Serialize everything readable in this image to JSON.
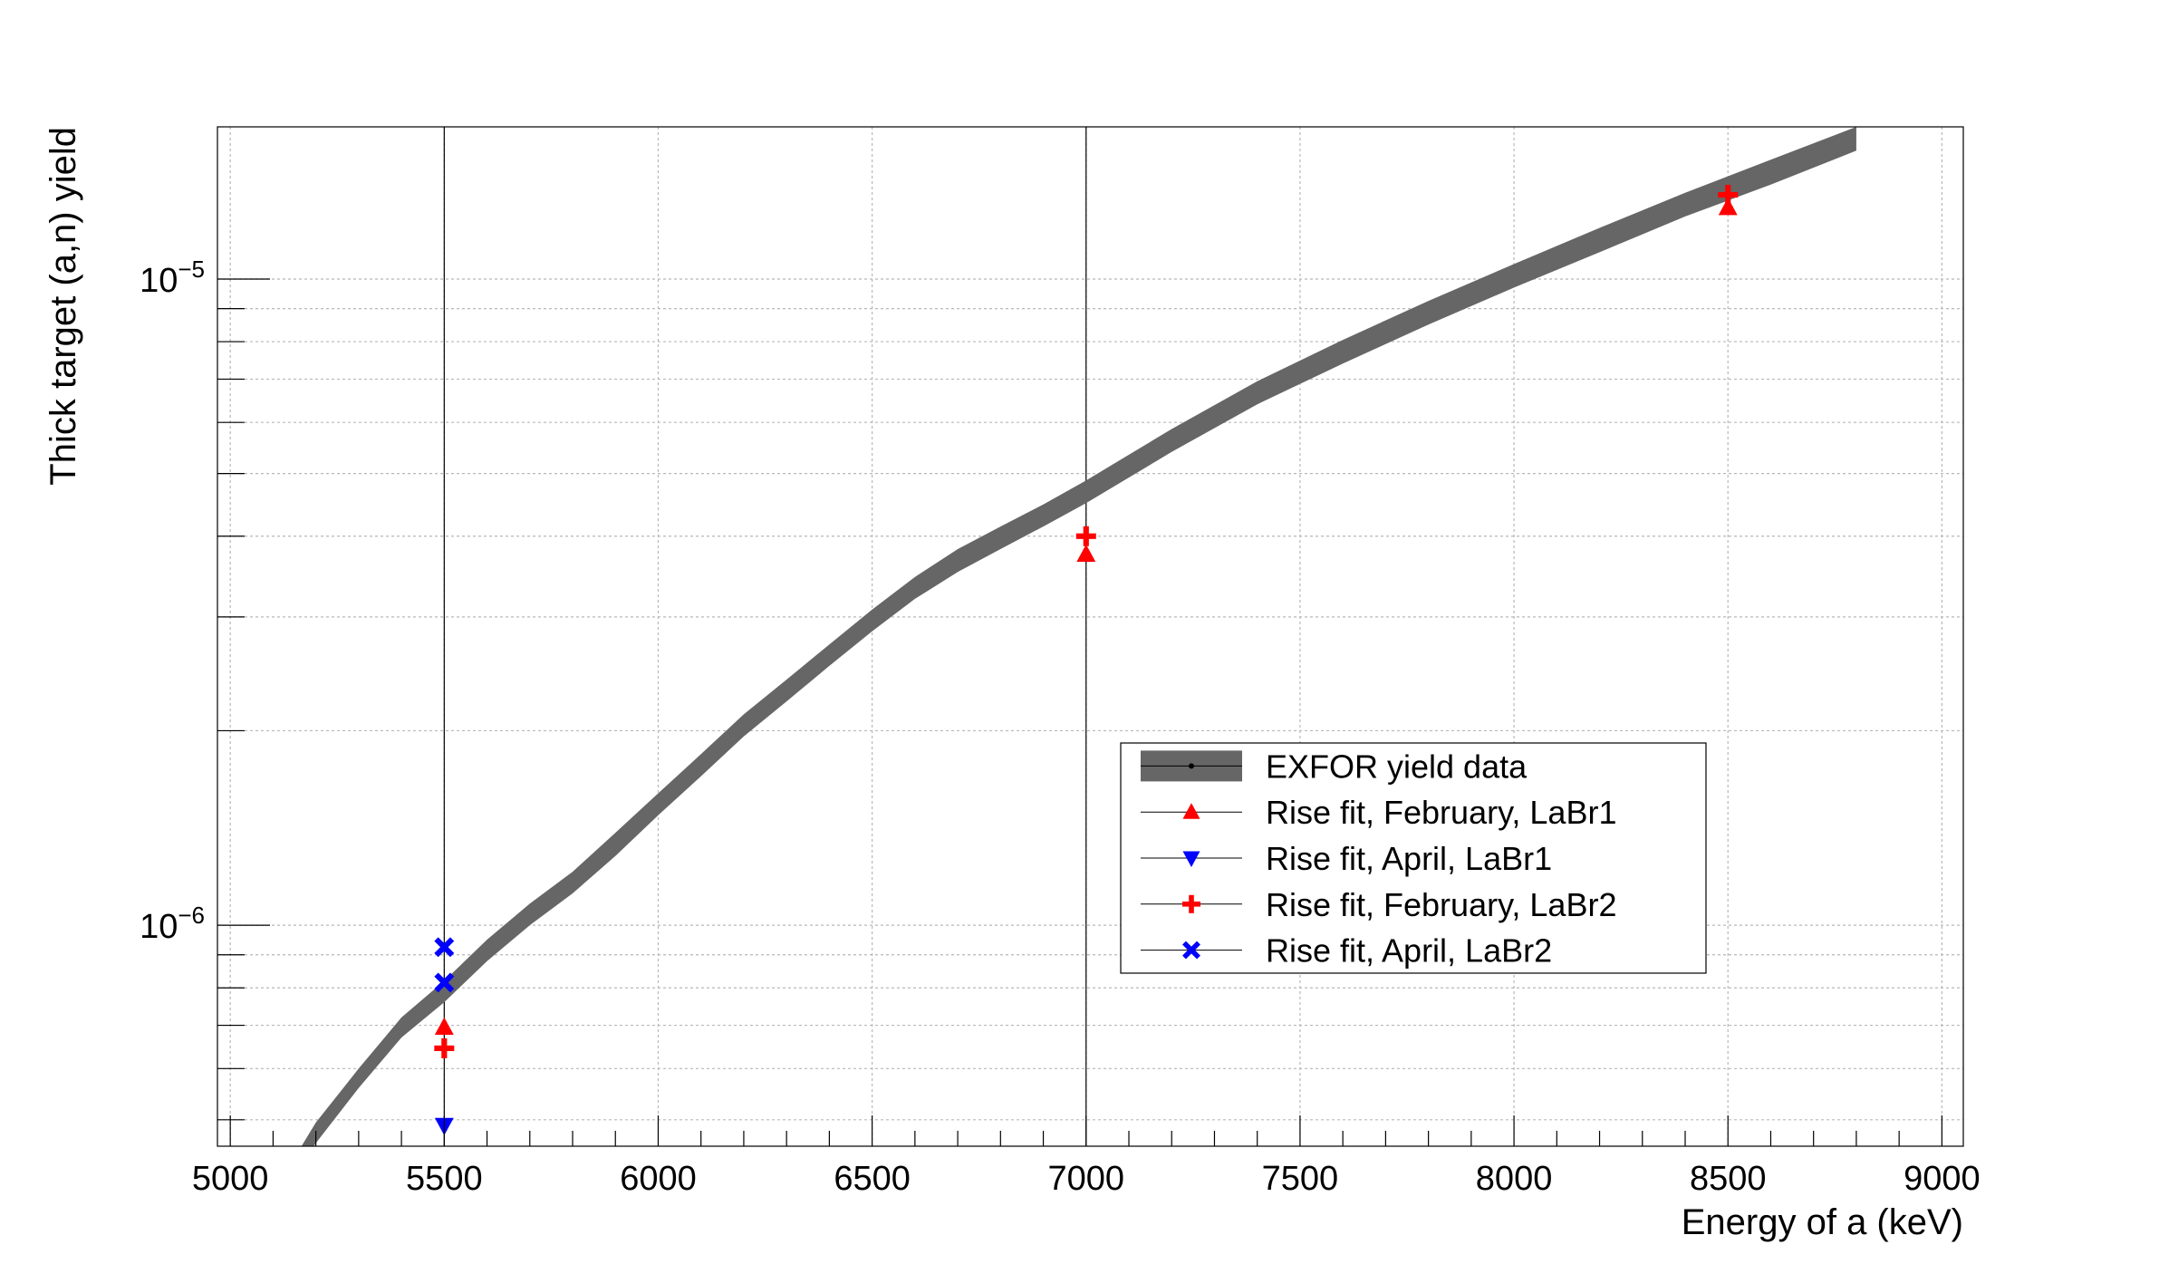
{
  "chart_data": {
    "type": "scatter",
    "xlabel": "Energy of a (keV)",
    "ylabel": "Thick target (a,n) yield",
    "xlim": [
      4970,
      9050
    ],
    "ylim": [
      4.55e-07,
      1.72e-05
    ],
    "yscale": "log",
    "grid": true,
    "legend_position": "center-right",
    "x_ticks": [
      5000,
      5500,
      6000,
      6500,
      7000,
      7500,
      8000,
      8500,
      9000
    ],
    "x_tick_labels": [
      "5000",
      "5500",
      "6000",
      "6500",
      "7000",
      "7500",
      "8000",
      "8500",
      "9000"
    ],
    "y_tick_labels": [
      {
        "value": 1e-06,
        "base": "10",
        "exp": "−6"
      },
      {
        "value": 1e-05,
        "base": "10",
        "exp": "−5"
      }
    ],
    "reference_lines_x": [
      5500,
      7000
    ],
    "band": {
      "name": "EXFOR yield data",
      "color": "#666666",
      "x": [
        5100,
        5200,
        5300,
        5400,
        5500,
        5600,
        5700,
        5800,
        5900,
        6000,
        6100,
        6200,
        6300,
        6400,
        6500,
        6600,
        6700,
        6800,
        6900,
        7000,
        7200,
        7400,
        7600,
        7800,
        8000,
        8200,
        8400,
        8600,
        8800
      ],
      "lower": [
        3.6e-07,
        4.6e-07,
        5.6e-07,
        6.7e-07,
        7.6e-07,
        8.8e-07,
        1e-06,
        1.12e-06,
        1.28e-06,
        1.48e-06,
        1.7e-06,
        1.96e-06,
        2.22e-06,
        2.52e-06,
        2.85e-06,
        3.2e-06,
        3.52e-06,
        3.82e-06,
        4.14e-06,
        4.5e-06,
        5.4e-06,
        6.4e-06,
        7.4e-06,
        8.5e-06,
        9.7e-06,
        1.1e-05,
        1.25e-05,
        1.4e-05,
        1.58e-05
      ],
      "upper": [
        3.85e-07,
        4.95e-07,
        6e-07,
        7.2e-07,
        8.2e-07,
        9.5e-07,
        1.08e-06,
        1.21e-06,
        1.39e-06,
        1.6e-06,
        1.84e-06,
        2.12e-06,
        2.4e-06,
        2.72e-06,
        3.08e-06,
        3.46e-06,
        3.82e-06,
        4.14e-06,
        4.48e-06,
        4.88e-06,
        5.86e-06,
        6.95e-06,
        8.05e-06,
        9.25e-06,
        1.055e-05,
        1.2e-05,
        1.36e-05,
        1.53e-05,
        1.72e-05
      ]
    },
    "series": [
      {
        "name": "Rise fit, February, LaBr1",
        "marker": "triangle-up",
        "color": "#ff0000",
        "points": [
          {
            "x": 5500,
            "y": 6.95e-07
          },
          {
            "x": 7000,
            "y": 3.75e-06
          },
          {
            "x": 8500,
            "y": 1.29e-05
          }
        ]
      },
      {
        "name": "Rise fit, April, LaBr1",
        "marker": "triangle-down",
        "color": "#0000ff",
        "points": [
          {
            "x": 5500,
            "y": 4.9e-07
          }
        ]
      },
      {
        "name": "Rise fit, February, LaBr2",
        "marker": "cross",
        "color": "#ff0000",
        "points": [
          {
            "x": 5500,
            "y": 6.45e-07
          },
          {
            "x": 7000,
            "y": 4e-06
          },
          {
            "x": 8500,
            "y": 1.35e-05
          }
        ]
      },
      {
        "name": "Rise fit, April, LaBr2",
        "marker": "x",
        "color": "#0000ff",
        "points": [
          {
            "x": 5500,
            "y": 9.25e-07
          },
          {
            "x": 5500,
            "y": 8.15e-07
          }
        ]
      }
    ]
  }
}
